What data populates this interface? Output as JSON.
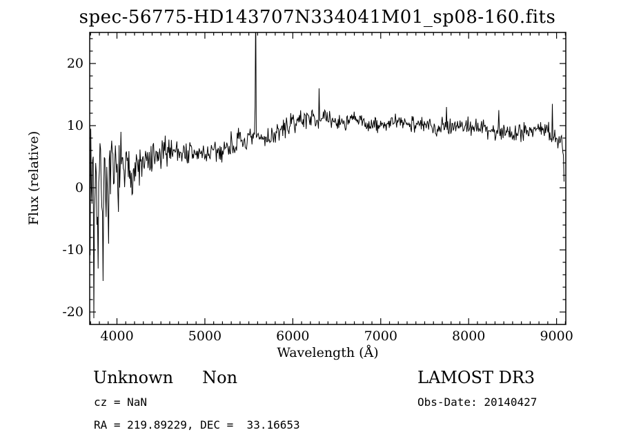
{
  "chart_data": {
    "type": "line",
    "title": "spec-56775-HD143707N334041M01_sp08-160.fits",
    "xlabel": "Wavelength (Å)",
    "ylabel": "Flux (relative)",
    "xlim": [
      3690,
      9105
    ],
    "ylim": [
      -22,
      25
    ],
    "x_ticks": [
      4000,
      5000,
      6000,
      7000,
      8000,
      9000
    ],
    "y_ticks": [
      -20,
      -10,
      0,
      10,
      20
    ],
    "x_minor_step": 100,
    "y_minor_step": 2,
    "line_color": "#000000",
    "background": "#ffffff",
    "grid": false,
    "legend": "none",
    "sample_step": 7,
    "x_start": 3695,
    "x_end": 9090,
    "seed": 7,
    "continuum": [
      [
        3695,
        1
      ],
      [
        3800,
        1
      ],
      [
        3900,
        1.5
      ],
      [
        4000,
        2
      ],
      [
        4100,
        2.5
      ],
      [
        4200,
        3
      ],
      [
        4300,
        3.5
      ],
      [
        4400,
        4.2
      ],
      [
        4500,
        5
      ],
      [
        4600,
        6.3
      ],
      [
        4700,
        6
      ],
      [
        4800,
        5.5
      ],
      [
        4900,
        5.4
      ],
      [
        5000,
        5.5
      ],
      [
        5100,
        5.5
      ],
      [
        5200,
        6
      ],
      [
        5300,
        7
      ],
      [
        5400,
        7.4
      ],
      [
        5500,
        7.5
      ],
      [
        5600,
        8
      ],
      [
        5700,
        8
      ],
      [
        5800,
        8.6
      ],
      [
        5900,
        9.5
      ],
      [
        6000,
        10.4
      ],
      [
        6100,
        11
      ],
      [
        6200,
        11.4
      ],
      [
        6300,
        11
      ],
      [
        6400,
        11
      ],
      [
        6500,
        10.6
      ],
      [
        6600,
        10.5
      ],
      [
        6700,
        11
      ],
      [
        6800,
        10.5
      ],
      [
        6900,
        10
      ],
      [
        7000,
        10
      ],
      [
        7100,
        10.4
      ],
      [
        7200,
        10.5
      ],
      [
        7300,
        10.5
      ],
      [
        7400,
        10.4
      ],
      [
        7500,
        10
      ],
      [
        7600,
        9.6
      ],
      [
        7700,
        10
      ],
      [
        7800,
        10
      ],
      [
        7900,
        10
      ],
      [
        8000,
        10
      ],
      [
        8100,
        9.6
      ],
      [
        8200,
        9.5
      ],
      [
        8300,
        9
      ],
      [
        8400,
        9
      ],
      [
        8500,
        9
      ],
      [
        8600,
        9
      ],
      [
        8700,
        9.4
      ],
      [
        8800,
        9.4
      ],
      [
        8900,
        9
      ],
      [
        9000,
        8
      ],
      [
        9090,
        6
      ]
    ],
    "noise_amplitude": [
      [
        3695,
        8
      ],
      [
        3800,
        6
      ],
      [
        3900,
        5
      ],
      [
        4000,
        4
      ],
      [
        4100,
        3.2
      ],
      [
        4300,
        2.6
      ],
      [
        4500,
        2
      ],
      [
        4700,
        1.8
      ],
      [
        5000,
        1.5
      ],
      [
        5300,
        1.6
      ],
      [
        5600,
        1.3
      ],
      [
        6000,
        1.2
      ],
      [
        6500,
        1
      ],
      [
        7000,
        1
      ],
      [
        7500,
        1.1
      ],
      [
        8000,
        1.1
      ],
      [
        8500,
        1.2
      ],
      [
        9090,
        1.5
      ]
    ],
    "features": [
      {
        "x": 3733,
        "y": 5
      },
      {
        "x": 3740,
        "y": -21
      },
      {
        "x": 3788,
        "y": -13
      },
      {
        "x": 3845,
        "y": -15
      },
      {
        "x": 3902,
        "y": -9
      },
      {
        "x": 4047,
        "y": 9
      },
      {
        "x": 5570,
        "y": 13
      },
      {
        "x": 5577,
        "y": 30
      },
      {
        "x": 6300,
        "y": 16
      },
      {
        "x": 6363,
        "y": 12.5
      },
      {
        "x": 7750,
        "y": 13
      },
      {
        "x": 8344,
        "y": 12.5
      },
      {
        "x": 8950,
        "y": 13.5
      },
      {
        "x": 9085,
        "y": 1
      }
    ]
  },
  "annotations": {
    "class": "Unknown",
    "subclass": "Non",
    "survey": "LAMOST DR3",
    "cz": "cz = NaN",
    "obs_date": "Obs-Date: 20140427",
    "coords": "RA = 219.89229, DEC =  33.16653"
  }
}
